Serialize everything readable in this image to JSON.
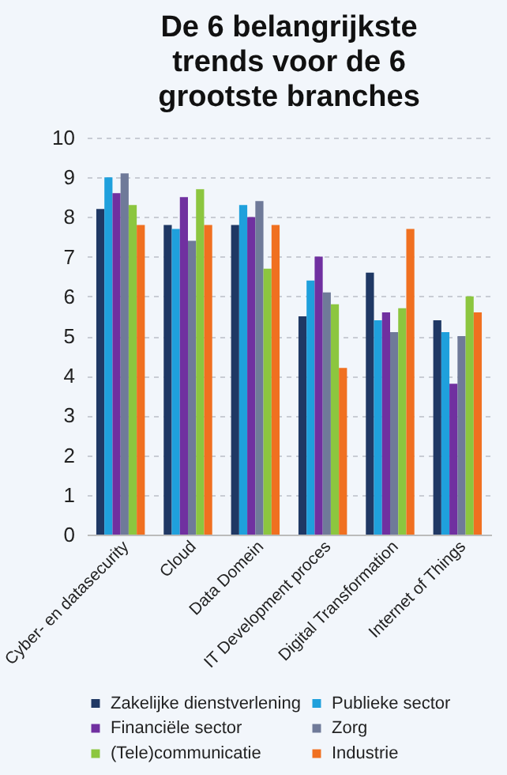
{
  "chart_data": {
    "type": "bar",
    "title": "De 6 belangrijkste trends voor de 6 grootste branches",
    "categories": [
      "Cyber- en datasecurity",
      "Cloud",
      "Data Domein",
      "IT Development proces",
      "Digital Transformation",
      "Internet of Things"
    ],
    "series": [
      {
        "name": "Zakelijke dienstverlening",
        "color": "#1f3864",
        "values": [
          8.2,
          7.8,
          7.8,
          5.5,
          6.6,
          5.4
        ]
      },
      {
        "name": "Publieke sector",
        "color": "#1fa0dc",
        "values": [
          9.0,
          7.7,
          8.3,
          6.4,
          5.4,
          5.1
        ]
      },
      {
        "name": "Financiële sector",
        "color": "#7030a0",
        "values": [
          8.6,
          8.5,
          8.0,
          7.0,
          5.6,
          3.8
        ]
      },
      {
        "name": "Zorg",
        "color": "#6f7a99",
        "values": [
          9.1,
          7.4,
          8.4,
          6.1,
          5.1,
          5.0
        ]
      },
      {
        "name": "(Tele)communicatie",
        "color": "#8cc63f",
        "values": [
          8.3,
          8.7,
          6.7,
          5.8,
          5.7,
          6.0
        ]
      },
      {
        "name": "Industrie",
        "color": "#f07020",
        "values": [
          7.8,
          7.8,
          7.8,
          4.2,
          7.7,
          5.6
        ]
      }
    ],
    "ylim": [
      0,
      10
    ],
    "yticks": [
      0,
      1,
      2,
      3,
      4,
      5,
      6,
      7,
      8,
      9,
      10
    ],
    "grid": "y",
    "legend": "bottom"
  }
}
